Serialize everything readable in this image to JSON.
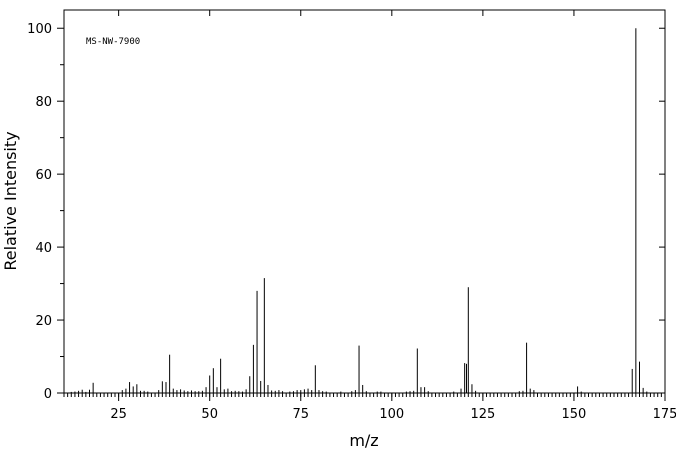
{
  "chart_data": {
    "type": "bar",
    "annotation": "MS-NW-7900",
    "xlabel": "m/z",
    "ylabel": "Relative Intensity",
    "xlim": [
      10,
      175
    ],
    "ylim": [
      0,
      105
    ],
    "x_ticks": [
      25,
      50,
      75,
      100,
      125,
      150,
      175
    ],
    "y_ticks": [
      0,
      20,
      40,
      60,
      80,
      100
    ],
    "grid": false,
    "legend": "none",
    "peaks": [
      {
        "mz": 12,
        "intensity": 0.3
      },
      {
        "mz": 13,
        "intensity": 0.4
      },
      {
        "mz": 14,
        "intensity": 0.6
      },
      {
        "mz": 15,
        "intensity": 0.9
      },
      {
        "mz": 16,
        "intensity": 0.3
      },
      {
        "mz": 17,
        "intensity": 0.9
      },
      {
        "mz": 18,
        "intensity": 2.8
      },
      {
        "mz": 26,
        "intensity": 0.8
      },
      {
        "mz": 27,
        "intensity": 1.2
      },
      {
        "mz": 28,
        "intensity": 3.0
      },
      {
        "mz": 29,
        "intensity": 1.8
      },
      {
        "mz": 30,
        "intensity": 2.4
      },
      {
        "mz": 31,
        "intensity": 0.6
      },
      {
        "mz": 32,
        "intensity": 0.6
      },
      {
        "mz": 33,
        "intensity": 0.4
      },
      {
        "mz": 36,
        "intensity": 0.8
      },
      {
        "mz": 37,
        "intensity": 3.2
      },
      {
        "mz": 38,
        "intensity": 3.0
      },
      {
        "mz": 39,
        "intensity": 10.5
      },
      {
        "mz": 40,
        "intensity": 1.2
      },
      {
        "mz": 41,
        "intensity": 0.8
      },
      {
        "mz": 42,
        "intensity": 1.0
      },
      {
        "mz": 43,
        "intensity": 0.7
      },
      {
        "mz": 44,
        "intensity": 0.5
      },
      {
        "mz": 45,
        "intensity": 0.7
      },
      {
        "mz": 46,
        "intensity": 0.5
      },
      {
        "mz": 47,
        "intensity": 0.5
      },
      {
        "mz": 48,
        "intensity": 0.6
      },
      {
        "mz": 49,
        "intensity": 1.6
      },
      {
        "mz": 50,
        "intensity": 4.8
      },
      {
        "mz": 51,
        "intensity": 6.8
      },
      {
        "mz": 52,
        "intensity": 1.6
      },
      {
        "mz": 53,
        "intensity": 9.4
      },
      {
        "mz": 54,
        "intensity": 1.0
      },
      {
        "mz": 55,
        "intensity": 1.2
      },
      {
        "mz": 56,
        "intensity": 0.5
      },
      {
        "mz": 57,
        "intensity": 0.6
      },
      {
        "mz": 58,
        "intensity": 0.5
      },
      {
        "mz": 59,
        "intensity": 0.4
      },
      {
        "mz": 60,
        "intensity": 1.0
      },
      {
        "mz": 61,
        "intensity": 4.6
      },
      {
        "mz": 62,
        "intensity": 13.2
      },
      {
        "mz": 63,
        "intensity": 28.0
      },
      {
        "mz": 64,
        "intensity": 3.3
      },
      {
        "mz": 65,
        "intensity": 31.5
      },
      {
        "mz": 66,
        "intensity": 2.2
      },
      {
        "mz": 67,
        "intensity": 0.7
      },
      {
        "mz": 68,
        "intensity": 0.6
      },
      {
        "mz": 69,
        "intensity": 0.8
      },
      {
        "mz": 70,
        "intensity": 0.5
      },
      {
        "mz": 72,
        "intensity": 0.4
      },
      {
        "mz": 73,
        "intensity": 0.5
      },
      {
        "mz": 74,
        "intensity": 0.8
      },
      {
        "mz": 75,
        "intensity": 0.8
      },
      {
        "mz": 76,
        "intensity": 1.0
      },
      {
        "mz": 77,
        "intensity": 1.2
      },
      {
        "mz": 78,
        "intensity": 0.8
      },
      {
        "mz": 79,
        "intensity": 7.6
      },
      {
        "mz": 80,
        "intensity": 0.8
      },
      {
        "mz": 81,
        "intensity": 0.5
      },
      {
        "mz": 82,
        "intensity": 0.4
      },
      {
        "mz": 86,
        "intensity": 0.4
      },
      {
        "mz": 89,
        "intensity": 0.5
      },
      {
        "mz": 90,
        "intensity": 0.8
      },
      {
        "mz": 91,
        "intensity": 13.0
      },
      {
        "mz": 92,
        "intensity": 2.2
      },
      {
        "mz": 93,
        "intensity": 0.5
      },
      {
        "mz": 96,
        "intensity": 0.4
      },
      {
        "mz": 97,
        "intensity": 0.4
      },
      {
        "mz": 104,
        "intensity": 0.4
      },
      {
        "mz": 105,
        "intensity": 0.5
      },
      {
        "mz": 106,
        "intensity": 0.6
      },
      {
        "mz": 107,
        "intensity": 12.2
      },
      {
        "mz": 108,
        "intensity": 1.6
      },
      {
        "mz": 109,
        "intensity": 1.6
      },
      {
        "mz": 110,
        "intensity": 0.5
      },
      {
        "mz": 117,
        "intensity": 0.4
      },
      {
        "mz": 119,
        "intensity": 1.2
      },
      {
        "mz": 120,
        "intensity": 8.2
      },
      {
        "mz": 120.5,
        "intensity": 8.0
      },
      {
        "mz": 121,
        "intensity": 29.0
      },
      {
        "mz": 122,
        "intensity": 2.4
      },
      {
        "mz": 123,
        "intensity": 0.6
      },
      {
        "mz": 135,
        "intensity": 0.5
      },
      {
        "mz": 136,
        "intensity": 0.6
      },
      {
        "mz": 137,
        "intensity": 13.8
      },
      {
        "mz": 138,
        "intensity": 1.2
      },
      {
        "mz": 139,
        "intensity": 0.8
      },
      {
        "mz": 151,
        "intensity": 1.8
      },
      {
        "mz": 152,
        "intensity": 0.4
      },
      {
        "mz": 166,
        "intensity": 6.6
      },
      {
        "mz": 167,
        "intensity": 100.0
      },
      {
        "mz": 168,
        "intensity": 8.6
      },
      {
        "mz": 169,
        "intensity": 1.4
      },
      {
        "mz": 170,
        "intensity": 0.4
      }
    ]
  }
}
